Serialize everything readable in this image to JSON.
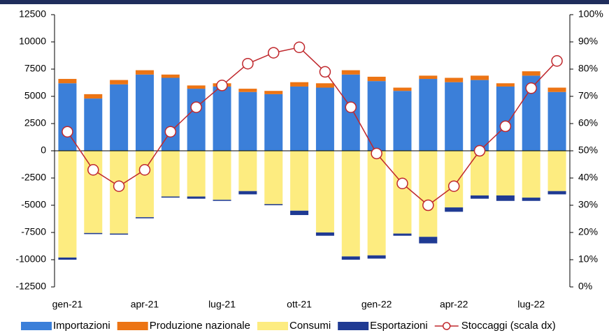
{
  "chart_data": {
    "type": "bar",
    "categories": [
      "gen-21",
      null,
      null,
      "apr-21",
      null,
      null,
      "lug-21",
      null,
      null,
      "ott-21",
      null,
      null,
      "gen-22",
      null,
      null,
      "apr-22",
      null,
      null,
      "lug-22",
      null
    ],
    "series": [
      {
        "name": "Importazioni",
        "color": "#3b7fd9",
        "stack": "pos",
        "values": [
          6200,
          4800,
          6100,
          7000,
          6700,
          5700,
          5900,
          5400,
          5200,
          5900,
          5800,
          7000,
          6400,
          5500,
          6600,
          6300,
          6500,
          5900,
          6900,
          5400
        ]
      },
      {
        "name": "Produzione nazionale",
        "color": "#ec7414",
        "stack": "pos",
        "values": [
          400,
          400,
          400,
          400,
          300,
          300,
          300,
          300,
          300,
          400,
          400,
          400,
          400,
          300,
          300,
          400,
          400,
          300,
          400,
          400
        ]
      },
      {
        "name": "Consumi",
        "color": "#fdec80",
        "stack": "neg",
        "values": [
          -9800,
          -7550,
          -7600,
          -6100,
          -4200,
          -4200,
          -4500,
          -3700,
          -4900,
          -5500,
          -7500,
          -9700,
          -9600,
          -7600,
          -7900,
          -5200,
          -4100,
          -4100,
          -4300,
          -3700
        ]
      },
      {
        "name": "Esportazioni",
        "color": "#1f3a93",
        "stack": "neg",
        "values": [
          -200,
          -100,
          -100,
          -100,
          -100,
          -200,
          -100,
          -300,
          -100,
          -400,
          -300,
          -300,
          -300,
          -200,
          -600,
          -400,
          -300,
          -500,
          -300,
          -300
        ]
      },
      {
        "name": "Stoccaggi (scala dx)",
        "color": "#c0282d",
        "type": "line",
        "axis": "y2",
        "values": [
          57,
          43,
          37,
          43,
          57,
          66,
          74,
          82,
          86,
          88,
          79,
          66,
          49,
          38,
          30,
          37,
          50,
          59,
          73,
          83
        ]
      }
    ],
    "ylim": [
      -12500,
      12500
    ],
    "yticks": [
      -12500,
      -10000,
      -7500,
      -5000,
      -2500,
      0,
      2500,
      5000,
      7500,
      10000,
      12500
    ],
    "y2lim": [
      0,
      100
    ],
    "y2ticks": [
      {
        "value": 0,
        "label": "0%"
      },
      {
        "value": 10,
        "label": "10%"
      },
      {
        "value": 20,
        "label": "20%"
      },
      {
        "value": 30,
        "label": "30%"
      },
      {
        "value": 40,
        "label": "40%"
      },
      {
        "value": 50,
        "label": "50%"
      },
      {
        "value": 60,
        "label": "60%"
      },
      {
        "value": 70,
        "label": "70%"
      },
      {
        "value": 80,
        "label": "80%"
      },
      {
        "value": 90,
        "label": "90%"
      },
      {
        "value": 100,
        "label": "100%"
      }
    ],
    "legend": "bottom"
  }
}
